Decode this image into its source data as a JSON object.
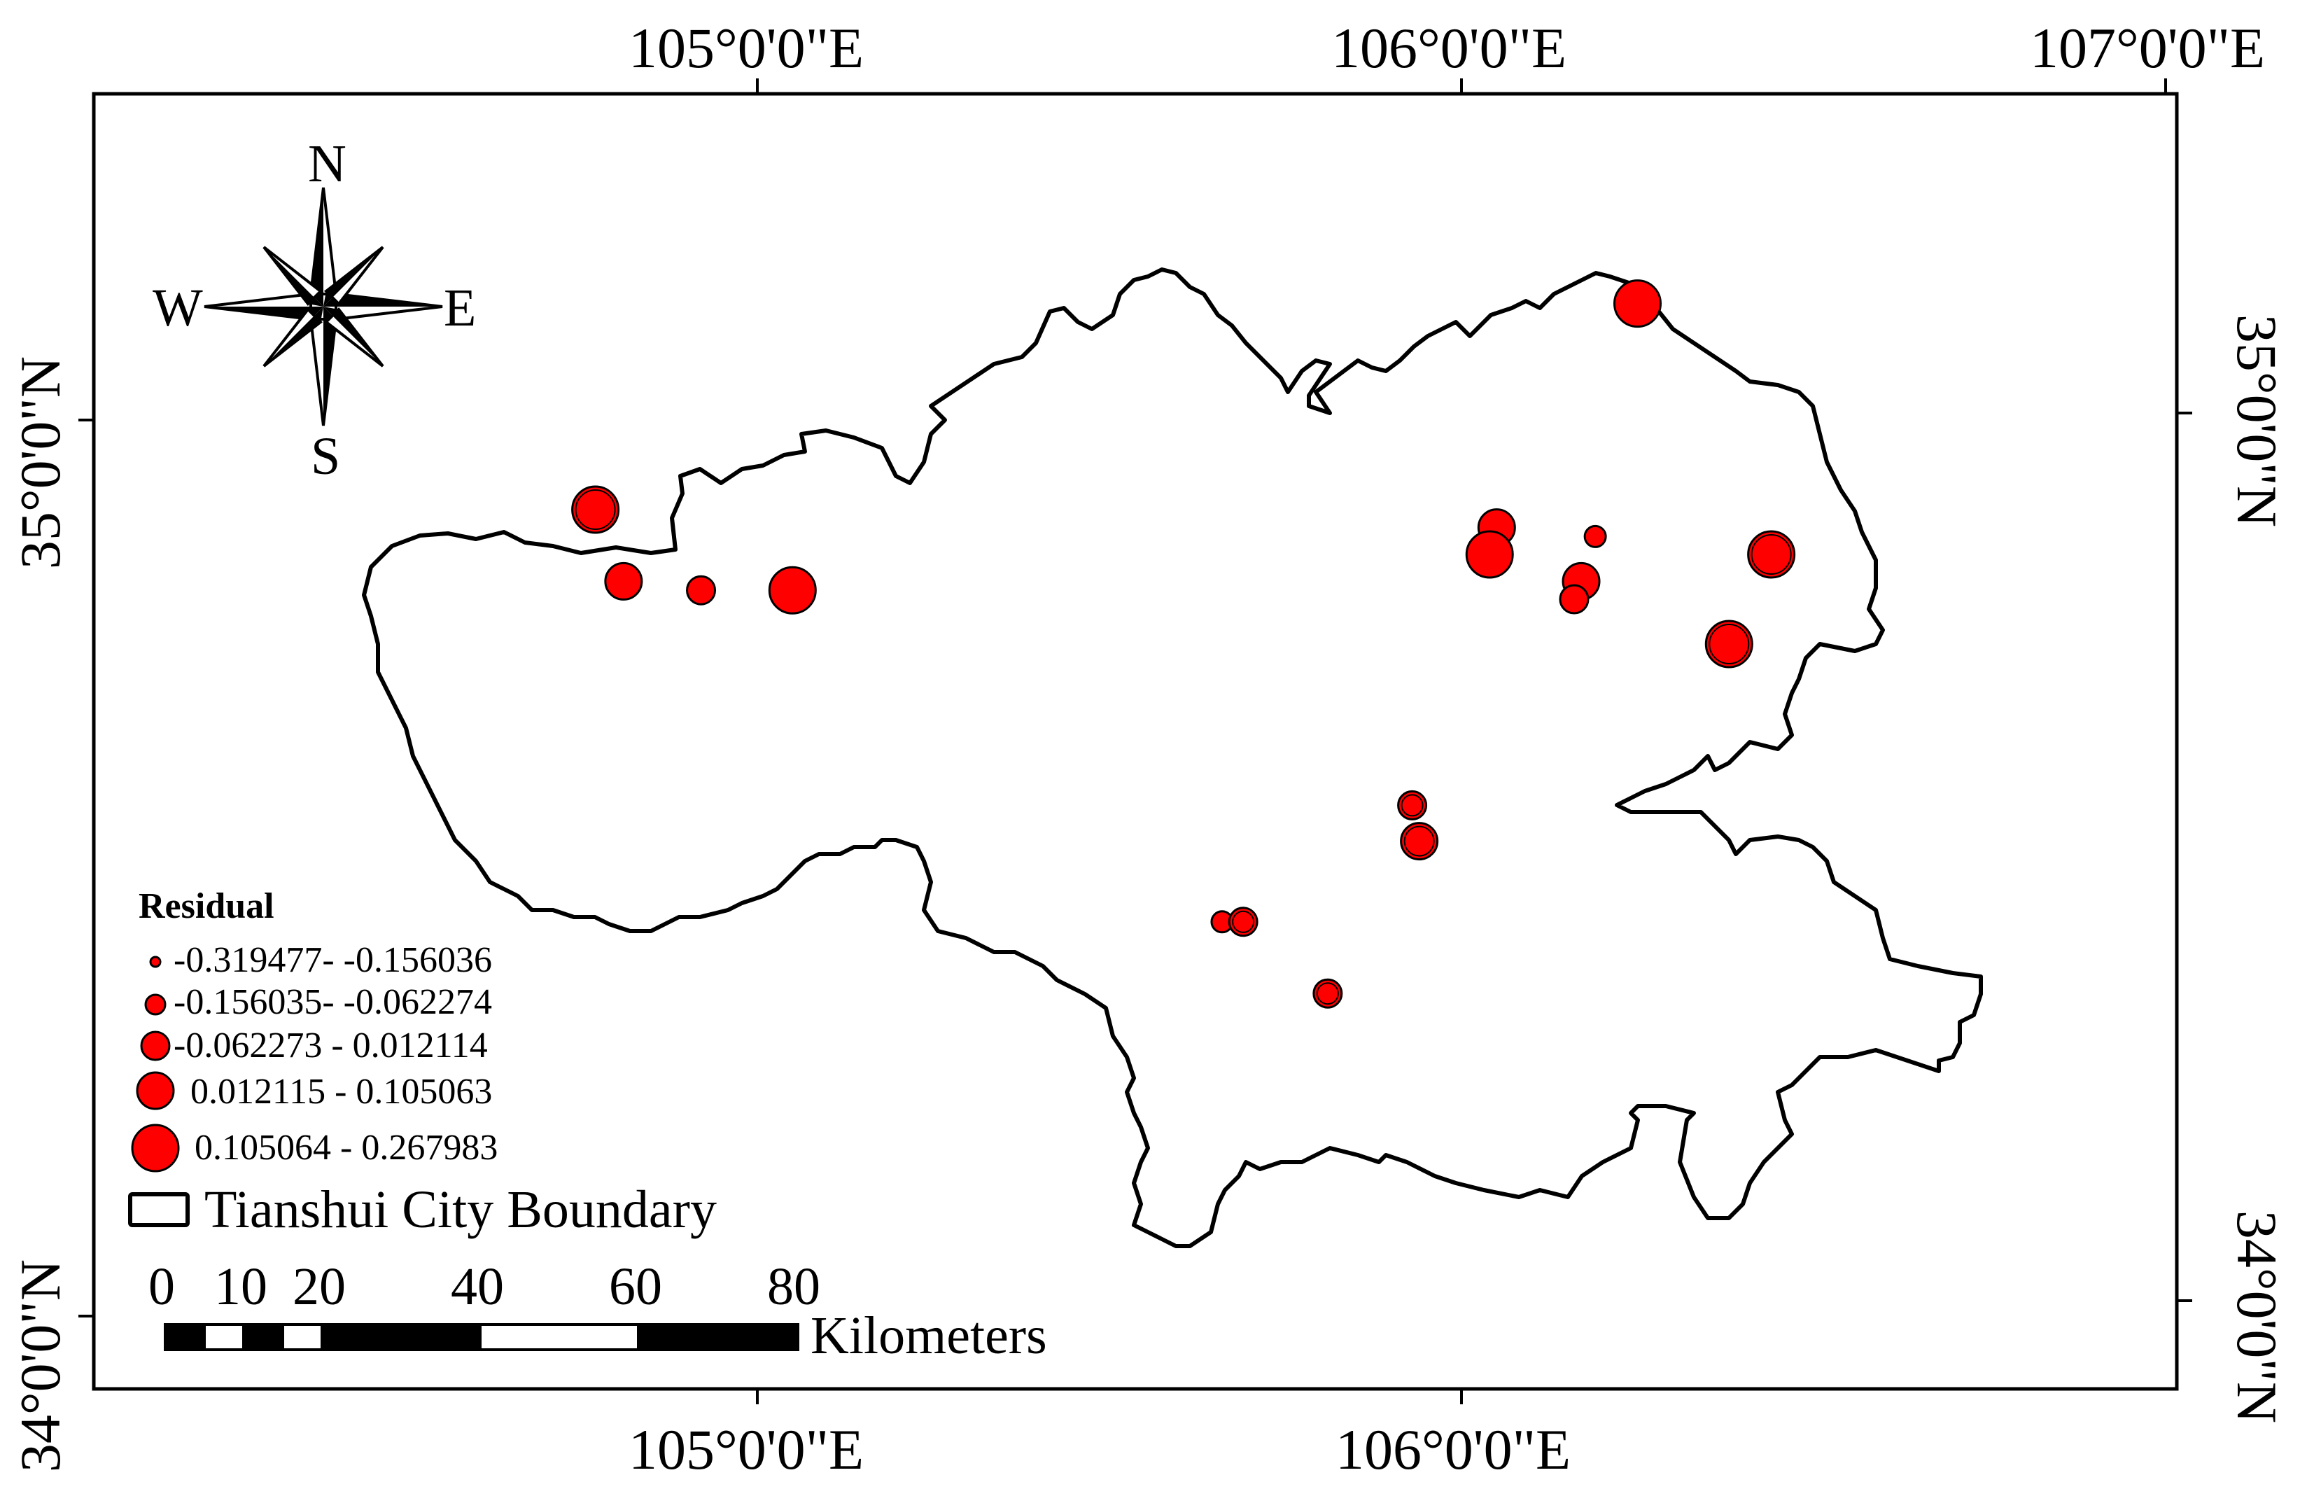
{
  "coordinates": {
    "top": [
      "105°0'0\"E",
      "106°0'0\"E",
      "107°0'0\"E"
    ],
    "bottom": [
      "105°0'0\"E",
      "106°0'0\"E"
    ],
    "left": [
      "35°0'0\"N",
      "34°0'0\"N"
    ],
    "right": [
      "35°0'0\"N",
      "34°0'0\"N"
    ]
  },
  "compass": {
    "north": "N",
    "south": "S",
    "east": "E",
    "west": "W"
  },
  "legend": {
    "title": "Residual",
    "classes": [
      {
        "label": "-0.319477- -0.156036",
        "size_class": 1
      },
      {
        "label": "-0.156035- -0.062274",
        "size_class": 2
      },
      {
        "label": "-0.062273 - 0.012114",
        "size_class": 3
      },
      {
        "label": "0.012115 - 0.105063",
        "size_class": 4
      },
      {
        "label": "0.105064 - 0.267983",
        "size_class": 5
      }
    ],
    "boundary_label": "Tianshui City Boundary"
  },
  "scale_bar": {
    "ticks": [
      "0",
      "10",
      "20",
      "40",
      "60",
      "80"
    ],
    "unit": "Kilometers"
  },
  "colors": {
    "point_fill": "#ff0000",
    "outline": "#000000",
    "background": "#ffffff"
  },
  "points": [
    {
      "lon": 104.77,
      "lat": 34.9,
      "class": 5,
      "ring": true
    },
    {
      "lon": 104.81,
      "lat": 34.82,
      "class": 4
    },
    {
      "lon": 104.92,
      "lat": 34.81,
      "class": 3
    },
    {
      "lon": 105.05,
      "lat": 34.81,
      "class": 5
    },
    {
      "lon": 106.05,
      "lat": 34.88,
      "class": 4
    },
    {
      "lon": 106.04,
      "lat": 34.85,
      "class": 5
    },
    {
      "lon": 106.19,
      "lat": 34.87,
      "class": 2
    },
    {
      "lon": 106.17,
      "lat": 34.82,
      "class": 4
    },
    {
      "lon": 106.16,
      "lat": 34.8,
      "class": 3
    },
    {
      "lon": 106.25,
      "lat": 35.13,
      "class": 5
    },
    {
      "lon": 106.44,
      "lat": 34.85,
      "class": 5,
      "ring": true
    },
    {
      "lon": 106.38,
      "lat": 34.75,
      "class": 5,
      "ring": true
    },
    {
      "lon": 105.93,
      "lat": 34.57,
      "class": 3,
      "ring": true
    },
    {
      "lon": 105.94,
      "lat": 34.53,
      "class": 4,
      "ring": true
    },
    {
      "lon": 105.66,
      "lat": 34.44,
      "class": 2
    },
    {
      "lon": 105.69,
      "lat": 34.44,
      "class": 3,
      "ring": true
    },
    {
      "lon": 105.81,
      "lat": 34.36,
      "class": 3,
      "ring": true
    }
  ]
}
